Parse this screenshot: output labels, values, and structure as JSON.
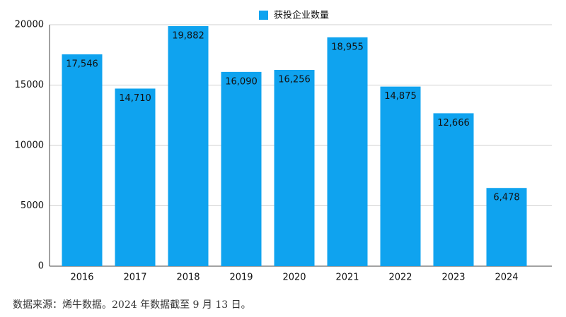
{
  "chart_data": {
    "type": "bar",
    "categories": [
      "2016",
      "2017",
      "2018",
      "2019",
      "2020",
      "2021",
      "2022",
      "2023",
      "2024"
    ],
    "series": [
      {
        "name": "获投企业数量",
        "color": "#0fa3ef",
        "values": [
          17546,
          14710,
          19882,
          16090,
          16256,
          18955,
          14875,
          12666,
          6478
        ],
        "value_labels": [
          "17,546",
          "14,710",
          "19,882",
          "16,090",
          "16,256",
          "18,955",
          "14,875",
          "12,666",
          "6,478"
        ]
      }
    ],
    "ylim": [
      0,
      20000
    ],
    "yticks": [
      0,
      5000,
      10000,
      15000,
      20000
    ],
    "grid": true,
    "legend": "top",
    "source": "数据来源：烯牛数据。2024 年数据截至 9 月 13 日。"
  }
}
